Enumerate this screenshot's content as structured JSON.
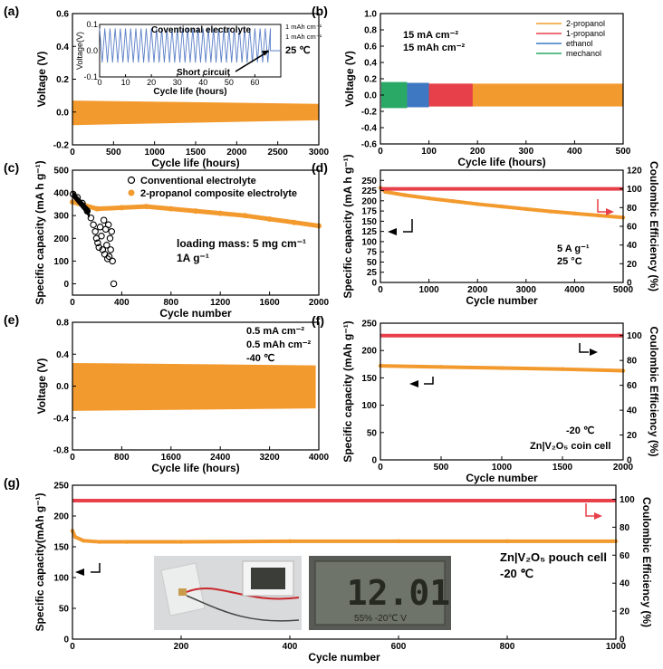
{
  "chart_data": [
    {
      "panel": "(a)",
      "type": "line",
      "xlabel": "Cycle life (hours)",
      "ylabel": "Voltage (V)",
      "xlim": [
        0,
        3000
      ],
      "ylim": [
        -0.2,
        0.6
      ],
      "xticks": [
        0,
        500,
        1000,
        1500,
        2000,
        2500,
        3000
      ],
      "yticks": [
        -0.2,
        0.0,
        0.2,
        0.4,
        0.6
      ],
      "band": {
        "x": [
          0,
          3000
        ],
        "upper_start": 0.07,
        "upper_end": 0.05,
        "lower_start": -0.08,
        "lower_end": -0.05,
        "color": "#f39a2e"
      },
      "inset": {
        "xlabel": "Cycle life (hours)",
        "ylabel": "Voltage(V)",
        "xlim": [
          0,
          70
        ],
        "ylim": [
          -0.1,
          0.1
        ],
        "xticks": [
          0,
          10,
          20,
          30,
          40,
          50,
          60
        ],
        "yticks": [
          -0.1,
          0.0,
          0.1
        ],
        "title": "Coventional electrolyte",
        "notes": [
          "1 mAh cm⁻¹",
          "1 mAh cm⁻¹",
          "25 ℃"
        ],
        "arrow_label": "Short circuit",
        "short_circuit_at": 66,
        "color": "#5b7fc7"
      }
    },
    {
      "panel": "(b)",
      "type": "line",
      "xlabel": "Cycle life (hours)",
      "ylabel": "Voltage (V)",
      "xlim": [
        0,
        500
      ],
      "ylim": [
        -0.6,
        1.0
      ],
      "xticks": [
        0,
        100,
        200,
        300,
        400,
        500
      ],
      "yticks": [
        -0.6,
        -0.4,
        -0.2,
        0.0,
        0.2,
        0.4,
        0.6,
        0.8,
        1.0
      ],
      "notes": [
        "15 mA cm⁻²",
        "15 mAh cm⁻²"
      ],
      "series": [
        {
          "name": "2-propanol",
          "x_end": 500,
          "amp": 0.14,
          "color": "#f39a2e"
        },
        {
          "name": "1-propanol",
          "x_end": 190,
          "amp": 0.14,
          "color": "#e8404a"
        },
        {
          "name": "ethanol",
          "x_end": 100,
          "amp": 0.15,
          "color": "#3f78c2"
        },
        {
          "name": "mechanol",
          "x_end": 55,
          "amp": 0.16,
          "color": "#2aa866"
        }
      ]
    },
    {
      "panel": "(c)",
      "type": "scatter",
      "xlabel": "Cycle number",
      "ylabel": "Specific capacity (mA h g⁻¹)",
      "xlim": [
        0,
        2000
      ],
      "ylim": [
        -50,
        500
      ],
      "xticks": [
        0,
        400,
        800,
        1200,
        1600,
        2000
      ],
      "yticks": [
        0,
        100,
        200,
        300,
        400,
        500
      ],
      "notes": [
        "loading mass: 5 mg cm⁻¹",
        "1A g⁻¹"
      ],
      "series": [
        {
          "name": "Conventional electrolyte",
          "color": "#000000",
          "x": [
            5,
            40,
            80,
            120,
            150,
            170,
            185,
            195,
            205,
            215,
            225,
            235,
            245,
            255,
            262,
            270,
            278,
            285,
            292,
            298,
            305,
            310,
            318,
            325,
            335
          ],
          "y": [
            395,
            380,
            355,
            320,
            290,
            260,
            230,
            200,
            180,
            160,
            250,
            210,
            150,
            280,
            130,
            240,
            170,
            110,
            260,
            120,
            200,
            150,
            230,
            100,
            0
          ]
        },
        {
          "name": "2-propanol composite electrolyte",
          "color": "#f39a2e",
          "x": [
            0,
            100,
            200,
            400,
            600,
            800,
            1000,
            1200,
            1400,
            1600,
            1800,
            2000
          ],
          "y": [
            360,
            345,
            330,
            335,
            340,
            330,
            320,
            310,
            300,
            285,
            270,
            255
          ]
        }
      ]
    },
    {
      "panel": "(d)",
      "type": "scatter",
      "xlabel": "Cycle number",
      "ylabel": "Specific capacity (mA h g⁻¹)",
      "y2label": "Coulombic Efficiency (%)",
      "xlim": [
        0,
        5000
      ],
      "ylim": [
        0,
        275
      ],
      "y2lim": [
        0,
        120
      ],
      "xticks": [
        0,
        1000,
        2000,
        3000,
        4000,
        5000
      ],
      "yticks": [
        0,
        25,
        50,
        75,
        100,
        125,
        150,
        175,
        200,
        225,
        250
      ],
      "y2ticks": [
        0,
        20,
        40,
        60,
        80,
        100,
        120
      ],
      "notes": [
        "5 A g⁻¹",
        "25 °C"
      ],
      "series": [
        {
          "name": "capacity",
          "color": "#f39a2e",
          "x": [
            0,
            100,
            500,
            1000,
            1500,
            2000,
            2500,
            3000,
            3500,
            4000,
            4500,
            5000
          ],
          "y": [
            232,
            222,
            214,
            206,
            199,
            192,
            186,
            180,
            174,
            169,
            164,
            159
          ]
        },
        {
          "name": "CE",
          "axis": "right",
          "color": "#e8404a",
          "x": [
            0,
            5000
          ],
          "y": [
            100,
            100
          ]
        }
      ]
    },
    {
      "panel": "(e)",
      "type": "line",
      "xlabel": "Cycle life (hours)",
      "ylabel": "Voltage (V)",
      "xlim": [
        0,
        4000
      ],
      "ylim": [
        -0.8,
        0.8
      ],
      "xticks": [
        0,
        800,
        1600,
        2400,
        3200,
        4000
      ],
      "yticks": [
        -0.8,
        -0.4,
        0.0,
        0.4,
        0.8
      ],
      "notes": [
        "0.5 mA cm⁻²",
        "0.5 mAh cm⁻²",
        "-40 ℃"
      ],
      "band": {
        "x": [
          0,
          3950
        ],
        "upper_start": 0.29,
        "upper_end": 0.26,
        "lower_start": -0.31,
        "lower_end": -0.28,
        "color": "#f39a2e"
      }
    },
    {
      "panel": "(f)",
      "type": "scatter",
      "xlabel": "Cycle number",
      "ylabel": "Specific capacity (mAh g⁻¹)",
      "y2label": "Coulombic Efficiency (%)",
      "xlim": [
        0,
        2000
      ],
      "ylim": [
        0,
        250
      ],
      "y2lim": [
        0,
        110
      ],
      "xticks": [
        0,
        500,
        1000,
        1500,
        2000
      ],
      "yticks": [
        0,
        50,
        100,
        150,
        200,
        250
      ],
      "y2ticks": [
        0,
        20,
        40,
        60,
        80,
        100
      ],
      "notes": [
        "-20 ℃",
        "Zn|V₂O₅ coin cell"
      ],
      "series": [
        {
          "name": "capacity",
          "color": "#f39a2e",
          "x": [
            0,
            500,
            1000,
            1500,
            2000
          ],
          "y": [
            172,
            170,
            168,
            166,
            163
          ]
        },
        {
          "name": "CE",
          "axis": "right",
          "color": "#e8404a",
          "x": [
            0,
            2000
          ],
          "y": [
            100,
            100
          ]
        }
      ]
    },
    {
      "panel": "(g)",
      "type": "scatter",
      "xlabel": "Cycle number",
      "ylabel": "Specific capacity(mAh g⁻¹)",
      "y2label": "Coulombic Efficiency (%)",
      "xlim": [
        0,
        1000
      ],
      "ylim": [
        0,
        250
      ],
      "y2lim": [
        0,
        110
      ],
      "xticks": [
        0,
        200,
        400,
        600,
        800,
        1000
      ],
      "yticks": [
        0,
        50,
        100,
        150,
        200,
        250
      ],
      "y2ticks": [
        0,
        20,
        40,
        60,
        80,
        100
      ],
      "notes": [
        "Zn|V₂O₅ pouch cell",
        "-20 ℃"
      ],
      "photo_text": {
        "display": "12.01",
        "sub": "55%  -20℃  V"
      },
      "series": [
        {
          "name": "capacity",
          "color": "#f39a2e",
          "x": [
            0,
            5,
            20,
            50,
            100,
            200,
            400,
            600,
            800,
            1000
          ],
          "y": [
            176,
            166,
            160,
            158,
            158,
            158,
            159,
            159,
            159,
            159
          ]
        },
        {
          "name": "CE",
          "axis": "right",
          "color": "#e8404a",
          "x": [
            0,
            1000
          ],
          "y": [
            99,
            99
          ]
        }
      ]
    }
  ]
}
